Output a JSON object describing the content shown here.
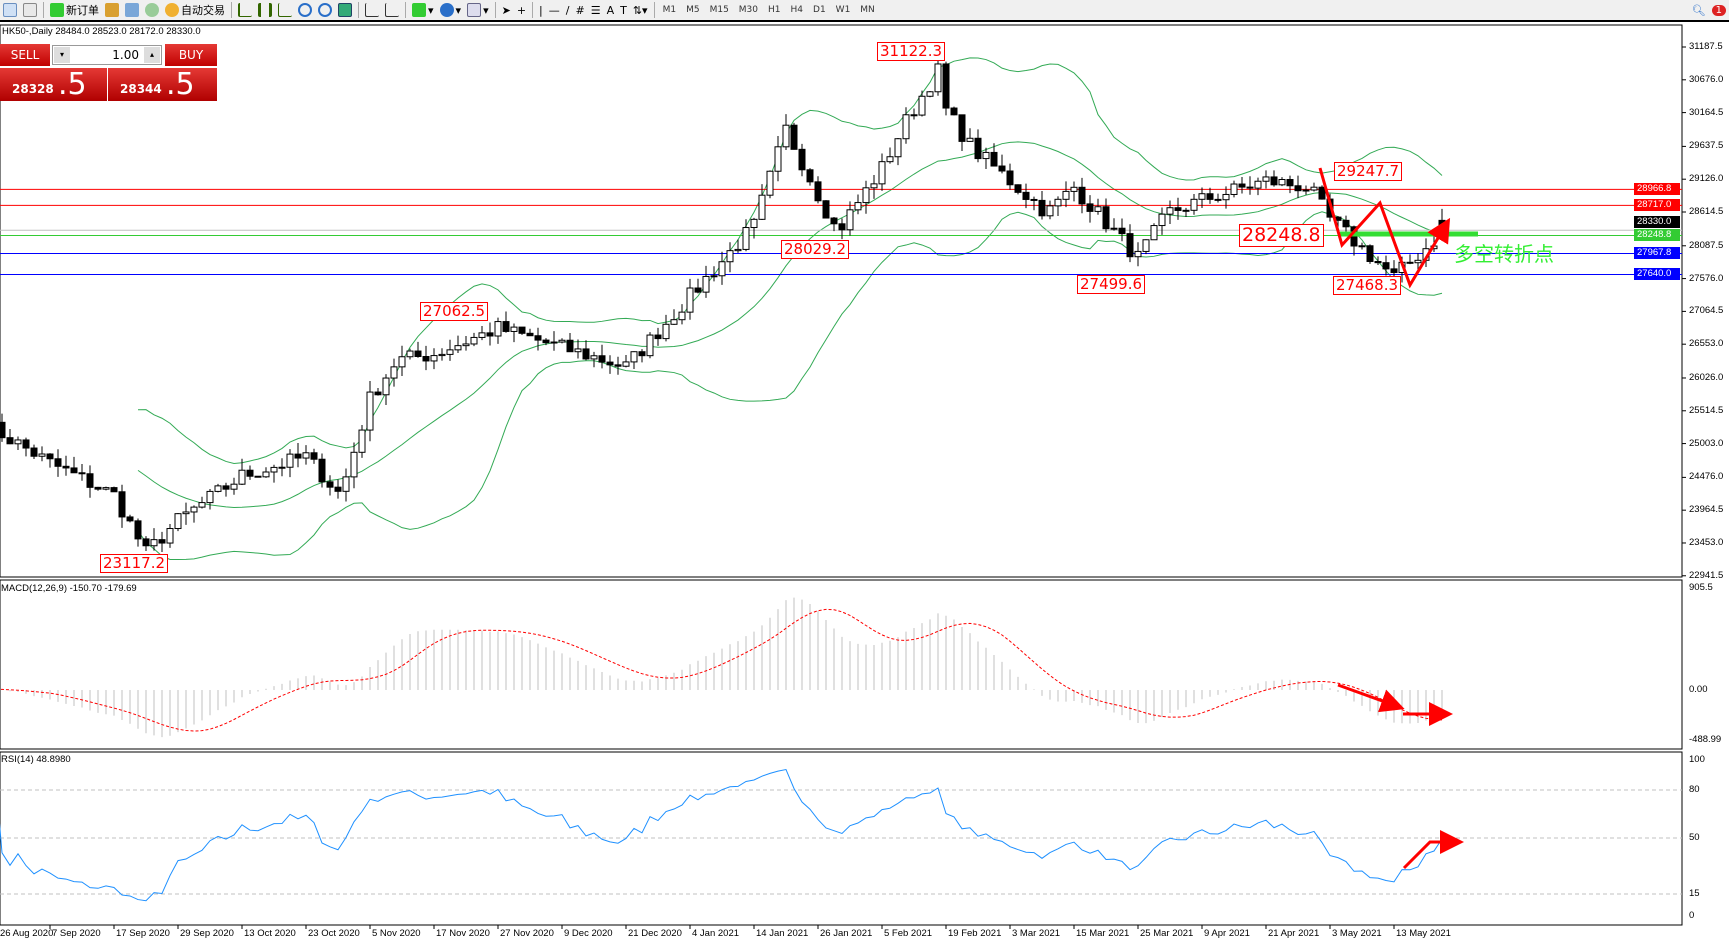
{
  "toolbar": {
    "new_order_label": "新订单",
    "auto_trade_label": "自动交易",
    "timeframes": [
      "M1",
      "M5",
      "M15",
      "M30",
      "H1",
      "H4",
      "D1",
      "W1",
      "MN"
    ],
    "notification_count": "1"
  },
  "chart_title": "HK50-,Daily  28484.0 28523.0 28172.0 28330.0",
  "trade_panel": {
    "sell_label": "SELL",
    "buy_label": "BUY",
    "lot": "1.00",
    "sell_price_main": "28328",
    "sell_price_tail": ".5",
    "buy_price_main": "28344",
    "buy_price_tail": ".5"
  },
  "chart_data": {
    "type": "candlestick",
    "symbol": "HK50-",
    "timeframe": "Daily",
    "price_axis_ticks": [
      "31187.5",
      "30676.0",
      "30164.5",
      "29637.5",
      "29126.0",
      "28614.5",
      "28087.5",
      "27576.0",
      "27064.5",
      "26553.0",
      "26026.0",
      "25514.5",
      "25003.0",
      "24476.0",
      "23964.5",
      "23453.0",
      "22941.5"
    ],
    "ylim": [
      22941.5,
      31187.5
    ],
    "date_ticks": [
      "26 Aug 2020",
      "7 Sep 2020",
      "17 Sep 2020",
      "29 Sep 2020",
      "13 Oct 2020",
      "23 Oct 2020",
      "5 Nov 2020",
      "17 Nov 2020",
      "27 Nov 2020",
      "9 Dec 2020",
      "21 Dec 2020",
      "4 Jan 2021",
      "14 Jan 2021",
      "26 Jan 2021",
      "5 Feb 2021",
      "19 Feb 2021",
      "3 Mar 2021",
      "15 Mar 2021",
      "25 Mar 2021",
      "9 Apr 2021",
      "21 Apr 2021",
      "3 May 2021",
      "13 May 2021"
    ],
    "approx_closes": [
      [
        "26 Aug 2020",
        25300
      ],
      [
        "7 Sep 2020",
        24700
      ],
      [
        "17 Sep 2020",
        24200
      ],
      [
        "23 Sep 2020",
        23300
      ],
      [
        "29 Sep 2020",
        23800
      ],
      [
        "13 Oct 2020",
        24500
      ],
      [
        "23 Oct 2020",
        24800
      ],
      [
        "30 Oct 2020",
        24200
      ],
      [
        "5 Nov 2020",
        25700
      ],
      [
        "10 Nov 2020",
        26300
      ],
      [
        "17 Nov 2020",
        26400
      ],
      [
        "27 Nov 2020",
        26800
      ],
      [
        "9 Dec 2020",
        26500
      ],
      [
        "21 Dec 2020",
        26200
      ],
      [
        "4 Jan 2021",
        27300
      ],
      [
        "14 Jan 2021",
        28400
      ],
      [
        "20 Jan 2021",
        29900
      ],
      [
        "26 Jan 2021",
        28900
      ],
      [
        "29 Jan 2021",
        28300
      ],
      [
        "5 Feb 2021",
        29300
      ],
      [
        "10 Feb 2021",
        30000
      ],
      [
        "18 Feb 2021",
        30900
      ],
      [
        "19 Feb 2021",
        30200
      ],
      [
        "24 Feb 2021",
        29600
      ],
      [
        "3 Mar 2021",
        29100
      ],
      [
        "10 Mar 2021",
        28600
      ],
      [
        "15 Mar 2021",
        29000
      ],
      [
        "25 Mar 2021",
        27900
      ],
      [
        "1 Apr 2021",
        28600
      ],
      [
        "9 Apr 2021",
        28800
      ],
      [
        "21 Apr 2021",
        29100
      ],
      [
        "29 Apr 2021",
        29000
      ],
      [
        "3 May 2021",
        28500
      ],
      [
        "13 May 2021",
        27600
      ],
      [
        "21 May 2021",
        28330
      ]
    ],
    "annotations": [
      "31122.3",
      "28029.2",
      "27062.5",
      "23117.2",
      "27499.6",
      "29247.7",
      "28248.8",
      "27468.3"
    ],
    "annotation_text": "多空转折点",
    "horizontal_lines": [
      {
        "value": "28966.8",
        "color": "#ff0000"
      },
      {
        "value": "28717.0",
        "color": "#ff0000"
      },
      {
        "value": "28330.0",
        "color": "#000000"
      },
      {
        "value": "28248.8",
        "color": "#33cc33"
      },
      {
        "value": "27967.8",
        "color": "#0000ff"
      },
      {
        "value": "27640.0",
        "color": "#0000ff"
      }
    ],
    "indicators": {
      "bollinger_color": "#33aa55",
      "macd": {
        "label": "MACD(12,26,9) -150.70 -179.69",
        "ticks": [
          "905.5",
          "0.00",
          "-488.99"
        ],
        "ylim": [
          -488.99,
          905.5
        ],
        "histogram_color": "#c0c0c0",
        "signal_color": "#ff0000"
      },
      "rsi": {
        "label": "RSI(14) 48.8980",
        "ticks": [
          "100",
          "80",
          "50",
          "15",
          "0"
        ],
        "levels": [
          80,
          50,
          15
        ],
        "color": "#1e90ff"
      }
    }
  }
}
